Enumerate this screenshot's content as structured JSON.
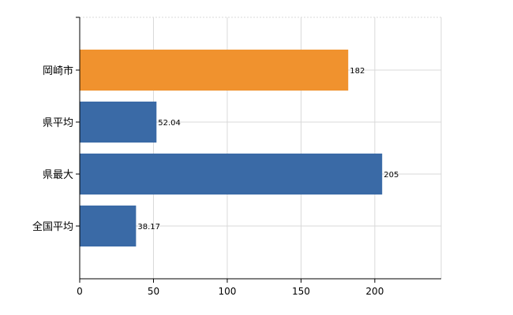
{
  "chart_data": {
    "type": "bar",
    "orientation": "horizontal",
    "categories": [
      "岡崎市",
      "県平均",
      "県最大",
      "全国平均"
    ],
    "values": [
      182,
      52.04,
      205,
      38.17
    ],
    "data_labels": [
      "182",
      "52.04",
      "205",
      "38.17"
    ],
    "xlim": [
      0,
      245
    ],
    "xticks": [
      0,
      50,
      100,
      150,
      200
    ],
    "xtick_labels": [
      "0",
      "50",
      "100",
      "150",
      "200"
    ],
    "grid": true,
    "title": "",
    "xlabel": "",
    "ylabel": "",
    "colors": {
      "highlight": "#F0922E",
      "default": "#3A6AA6",
      "grid": "#D9D9D9",
      "axis": "#000000"
    },
    "highlight_category": "岡崎市"
  }
}
